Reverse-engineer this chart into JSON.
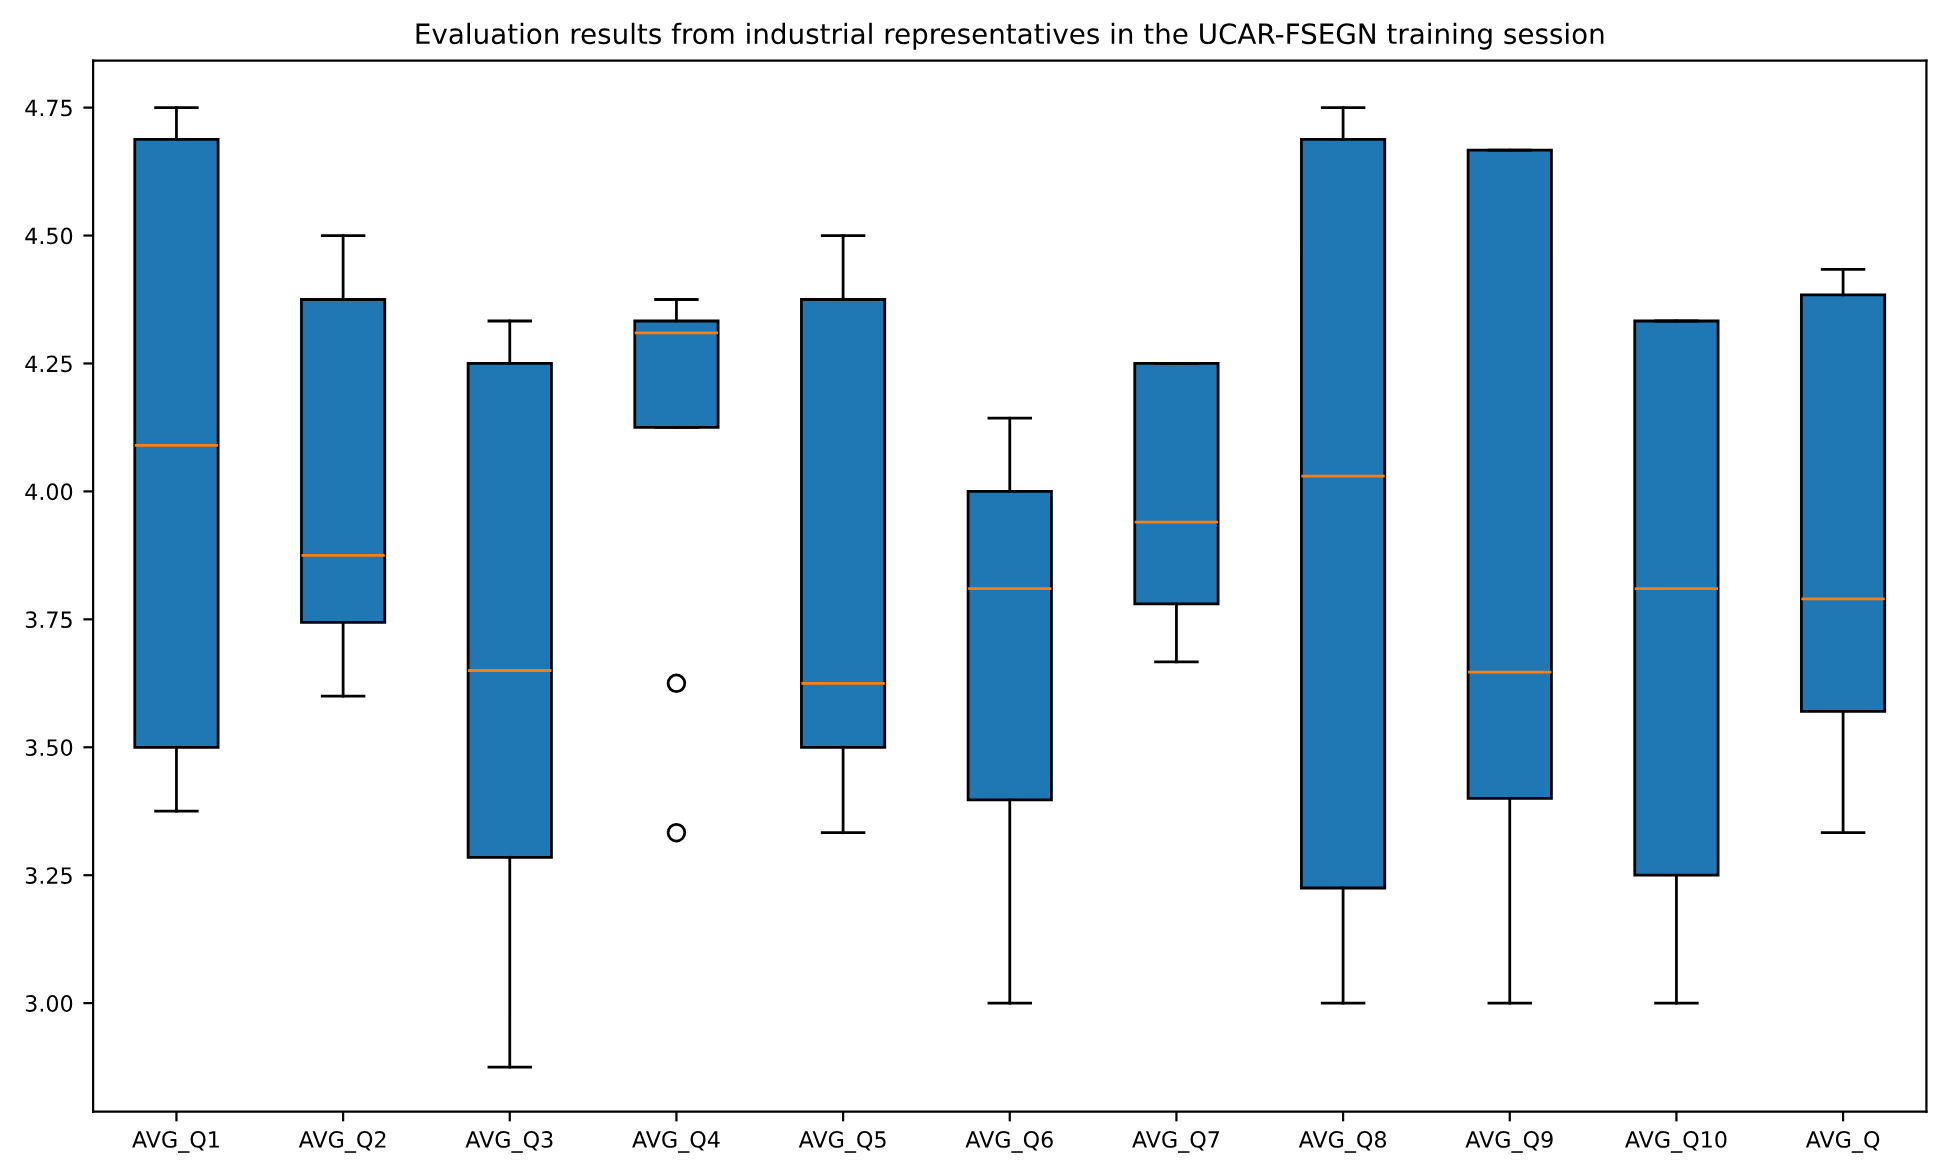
{
  "chart_data": {
    "type": "box",
    "title": "Evaluation results from industrial representatives in the UCAR-FSEGN training session",
    "categories": [
      "AVG_Q1",
      "AVG_Q2",
      "AVG_Q3",
      "AVG_Q4",
      "AVG_Q5",
      "AVG_Q6",
      "AVG_Q7",
      "AVG_Q8",
      "AVG_Q9",
      "AVG_Q10",
      "AVG_Q"
    ],
    "color": "#1f77b4",
    "boxes": [
      {
        "low": 3.375,
        "q1": 3.5,
        "median": 4.09,
        "q3": 4.688,
        "high": 4.75
      },
      {
        "low": 3.6,
        "q1": 3.744,
        "median": 3.875,
        "q3": 4.375,
        "high": 4.5
      },
      {
        "low": 2.875,
        "q1": 3.285,
        "median": 3.65,
        "q3": 4.25,
        "high": 4.333
      },
      {
        "low": 4.125,
        "q1": 4.125,
        "median": 4.31,
        "q3": 4.333,
        "high": 4.375,
        "outliers": [
          3.625,
          3.333
        ]
      },
      {
        "low": 3.333,
        "q1": 3.5,
        "median": 3.625,
        "q3": 4.375,
        "high": 4.5
      },
      {
        "low": 3.0,
        "q1": 3.397,
        "median": 3.81,
        "q3": 4.0,
        "high": 4.143
      },
      {
        "low": 3.667,
        "q1": 3.78,
        "median": 3.94,
        "q3": 4.25,
        "high": 4.25
      },
      {
        "low": 3.0,
        "q1": 3.225,
        "median": 4.03,
        "q3": 4.688,
        "high": 4.75
      },
      {
        "low": 3.0,
        "q1": 3.4,
        "median": 3.647,
        "q3": 4.667,
        "high": 4.667
      },
      {
        "low": 3.0,
        "q1": 3.25,
        "median": 3.81,
        "q3": 4.333,
        "high": 4.333
      },
      {
        "low": 3.333,
        "q1": 3.57,
        "median": 3.79,
        "q3": 4.384,
        "high": 4.434
      }
    ],
    "ylim": [
      2.788,
      4.842
    ],
    "yticks": [
      {
        "value": 3,
        "label": "3.00"
      },
      {
        "value": 3.25,
        "label": "3.25"
      },
      {
        "value": 3.5,
        "label": "3.50"
      },
      {
        "value": 3.75,
        "label": "3.75"
      },
      {
        "value": 4,
        "label": "4.00"
      },
      {
        "value": 4.25,
        "label": "4.25"
      },
      {
        "value": 4.5,
        "label": "4.50"
      },
      {
        "value": 4.75,
        "label": "4.75"
      }
    ],
    "grid": false,
    "legend": false
  }
}
